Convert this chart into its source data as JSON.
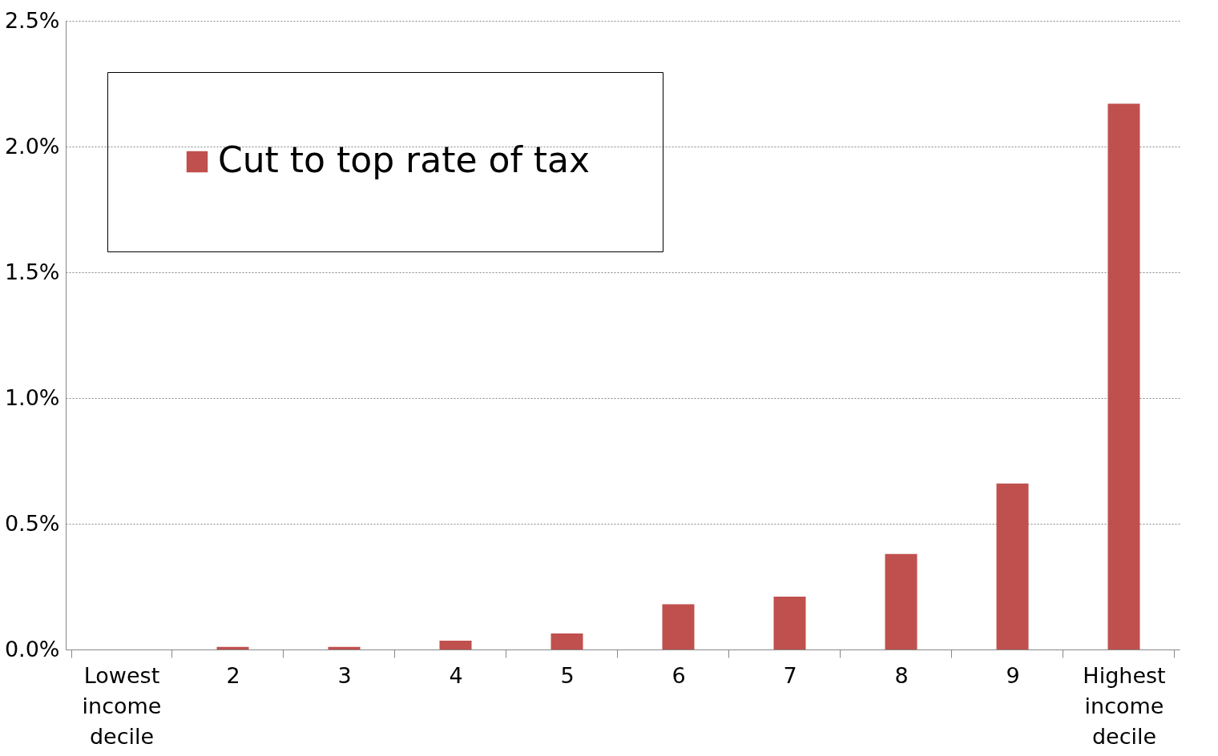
{
  "chart_data": {
    "type": "bar",
    "categories": [
      "Lowest income decile",
      "2",
      "3",
      "4",
      "5",
      "6",
      "7",
      "8",
      "9",
      "Highest income decile"
    ],
    "series": [
      {
        "name": "Cut to top rate of tax",
        "color": "#c0504d",
        "values": [
          0,
          0.01,
          0.01,
          0.035,
          0.064,
          0.18,
          0.21,
          0.38,
          0.66,
          2.17
        ]
      }
    ],
    "ylim": [
      0,
      2.5
    ],
    "yticks": [
      {
        "value": 0,
        "label": "0.0%"
      },
      {
        "value": 0.5,
        "label": "0.5%"
      },
      {
        "value": 1.0,
        "label": "1.0%"
      },
      {
        "value": 1.5,
        "label": "1.5%"
      },
      {
        "value": 2.0,
        "label": "2.0%"
      },
      {
        "value": 2.5,
        "label": "2.5%"
      }
    ],
    "grid": "y",
    "legend": "top left"
  }
}
